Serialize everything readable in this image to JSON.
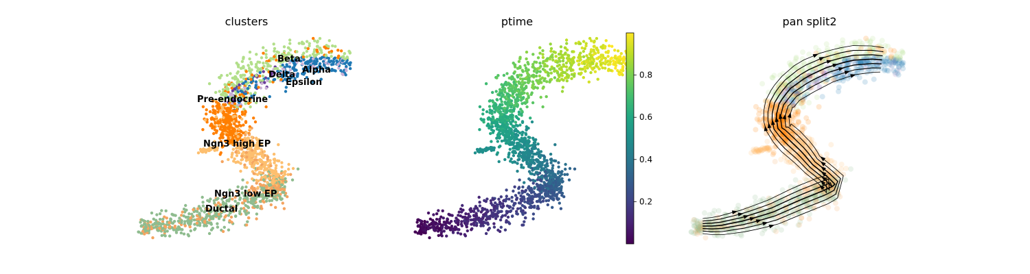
{
  "panels": [
    {
      "title": "clusters"
    },
    {
      "title": "ptime"
    },
    {
      "title": "pan split2"
    }
  ],
  "chart_data": [
    {
      "type": "scatter",
      "title": "clusters",
      "legend": "on data",
      "grid": false,
      "clusters": [
        {
          "name": "Ductal",
          "label": "Ductal",
          "color": "#8fbc8f"
        },
        {
          "name": "Ngn3 low EP",
          "label": "Ngn3 low EP",
          "color": "#f4a460"
        },
        {
          "name": "Ngn3 high EP",
          "label": "Ngn3 high EP",
          "color": "#fdbf6f"
        },
        {
          "name": "Pre-endocrine",
          "label": "Pre-endocrine",
          "color": "#ff7f00"
        },
        {
          "name": "Beta",
          "label": "Beta",
          "color": "#b2df8a"
        },
        {
          "name": "Alpha",
          "label": "Alpha",
          "color": "#1f78b4"
        },
        {
          "name": "Delta",
          "label": "Delta",
          "color": "#6a3d9a"
        },
        {
          "name": "Epsilon",
          "label": "Epsilon",
          "color": "#cab2d6"
        }
      ]
    },
    {
      "type": "scatter",
      "title": "ptime",
      "colormap": "viridis",
      "colorbar": {
        "ticks": [
          0.2,
          0.4,
          0.6,
          0.8
        ],
        "range": [
          0.0,
          1.0
        ]
      },
      "grid": false
    },
    {
      "type": "streamplot",
      "title": "pan split2",
      "grid": false
    }
  ]
}
